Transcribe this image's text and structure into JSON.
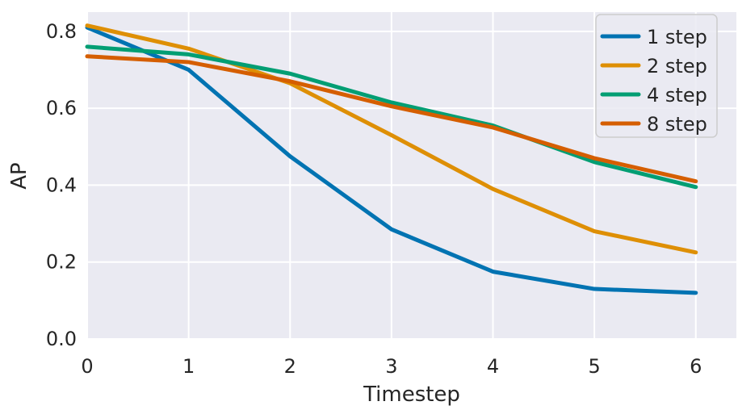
{
  "figure": {
    "background": "#ffffff",
    "plot_background": "#eaeaf2",
    "grid_color": "#ffffff",
    "text_color": "#262626",
    "line_width": 5,
    "legend": {
      "background": "#eaeaf2",
      "border_color": "#cccccc",
      "labels": [
        "1 step",
        "2 step",
        "4 step",
        "8 step"
      ]
    }
  },
  "chart_data": {
    "type": "line",
    "title": "",
    "xlabel": "Timestep",
    "ylabel": "AP",
    "x": [
      0,
      1,
      2,
      3,
      4,
      5,
      6
    ],
    "series": [
      {
        "name": "1 step",
        "color": "#0173b2",
        "values": [
          0.81,
          0.7,
          0.475,
          0.285,
          0.175,
          0.13,
          0.12
        ]
      },
      {
        "name": "2 step",
        "color": "#de8f05",
        "values": [
          0.815,
          0.755,
          0.665,
          0.53,
          0.39,
          0.28,
          0.225
        ]
      },
      {
        "name": "4 step",
        "color": "#029e73",
        "values": [
          0.76,
          0.74,
          0.69,
          0.615,
          0.555,
          0.46,
          0.395
        ]
      },
      {
        "name": "8 step",
        "color": "#d55e00",
        "values": [
          0.735,
          0.72,
          0.67,
          0.605,
          0.55,
          0.47,
          0.41
        ]
      }
    ],
    "xticks": [
      "0",
      "1",
      "2",
      "3",
      "4",
      "5",
      "6"
    ],
    "yticks": [
      "0.0",
      "0.2",
      "0.4",
      "0.6",
      "0.8"
    ],
    "xlim": [
      0,
      6.4
    ],
    "ylim": [
      0,
      0.85
    ],
    "grid": true,
    "legend_position": "upper right"
  }
}
